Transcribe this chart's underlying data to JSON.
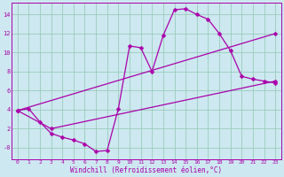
{
  "xlabel": "Windchill (Refroidissement éolien,°C)",
  "bg_color": "#cde8f0",
  "line_color": "#aa00aa",
  "grid_color": "#99ccbb",
  "xlim": [
    -0.5,
    23.5
  ],
  "ylim": [
    -1.2,
    15.2
  ],
  "xticks": [
    0,
    1,
    2,
    3,
    4,
    5,
    6,
    7,
    8,
    9,
    10,
    11,
    12,
    13,
    14,
    15,
    16,
    17,
    18,
    19,
    20,
    21,
    22,
    23
  ],
  "yticks": [
    0,
    2,
    4,
    6,
    8,
    10,
    12,
    14
  ],
  "ytick_labels": [
    "-0",
    "2",
    "4",
    "6",
    "8",
    "10",
    "12",
    "14"
  ],
  "line1_x": [
    0,
    1,
    2,
    3,
    4,
    5,
    6,
    7,
    8,
    9,
    10,
    11,
    12,
    13,
    14,
    15,
    16,
    17,
    18,
    19,
    20,
    21,
    22,
    23
  ],
  "line1_y": [
    3.9,
    4.1,
    2.7,
    1.5,
    1.1,
    0.8,
    0.4,
    -0.4,
    -0.3,
    4.1,
    10.7,
    10.5,
    8.0,
    11.8,
    14.5,
    14.6,
    14.0,
    13.5,
    12.0,
    10.2,
    7.5,
    7.2,
    7.0,
    6.8
  ],
  "line2_x": [
    0,
    3,
    23
  ],
  "line2_y": [
    3.9,
    2.0,
    7.0
  ],
  "line3_x": [
    0,
    23
  ],
  "line3_y": [
    3.9,
    12.0
  ],
  "marker": "D",
  "marker_size": 2.5,
  "linewidth": 0.9,
  "tick_fontsize": 4.5,
  "xlabel_fontsize": 5.5
}
